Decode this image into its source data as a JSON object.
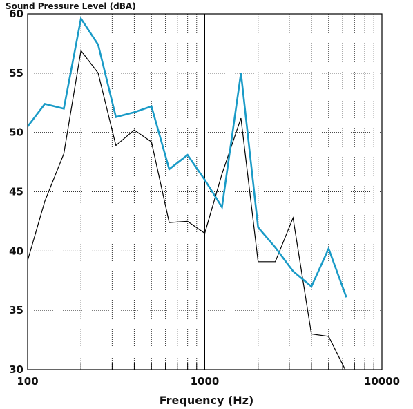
{
  "chart_data": {
    "type": "line",
    "ylabel": "Sound Pressure Level (dBA)",
    "xlabel": "Frequency (Hz)",
    "xscale": "log",
    "xlim": [
      100,
      10000
    ],
    "ylim": [
      30,
      60
    ],
    "x_tick_labels": [
      "100",
      "1000",
      "10000"
    ],
    "y_tick_labels": [
      "30",
      "35",
      "40",
      "45",
      "50",
      "55",
      "60"
    ],
    "grid": true,
    "colors": {
      "series_1": "#1a9bc7",
      "series_2": "#000000"
    },
    "series": [
      {
        "x": [
          100,
          125,
          160,
          200,
          250,
          315,
          400,
          500,
          630,
          800,
          1000,
          1250,
          1600,
          2000,
          2500,
          3150,
          4000,
          5000,
          6300
        ],
        "y": [
          50.5,
          52.4,
          52.0,
          59.6,
          57.4,
          51.3,
          51.7,
          52.2,
          46.9,
          48.1,
          46.0,
          43.7,
          55.0,
          42.0,
          40.3,
          38.3,
          37.0,
          40.2,
          36.1
        ]
      },
      {
        "x": [
          100,
          125,
          160,
          200,
          250,
          315,
          400,
          500,
          630,
          800,
          1000,
          1250,
          1600,
          2000,
          2500,
          3150,
          4000,
          5000,
          6300
        ],
        "y": [
          39.2,
          44.2,
          48.2,
          56.9,
          55.0,
          48.9,
          50.2,
          49.2,
          42.4,
          42.5,
          41.5,
          46.5,
          51.2,
          39.1,
          39.1,
          42.8,
          33.0,
          32.8,
          29.8
        ]
      }
    ]
  }
}
